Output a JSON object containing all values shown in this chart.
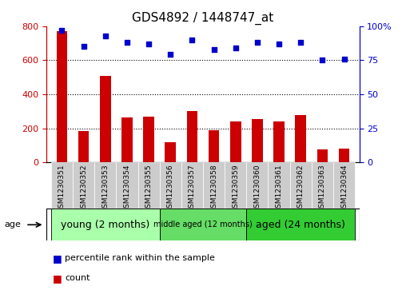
{
  "title": "GDS4892 / 1448747_at",
  "samples": [
    "GSM1230351",
    "GSM1230352",
    "GSM1230353",
    "GSM1230354",
    "GSM1230355",
    "GSM1230356",
    "GSM1230357",
    "GSM1230358",
    "GSM1230359",
    "GSM1230360",
    "GSM1230361",
    "GSM1230362",
    "GSM1230363",
    "GSM1230364"
  ],
  "counts": [
    770,
    185,
    510,
    265,
    268,
    120,
    300,
    190,
    240,
    255,
    240,
    278,
    75,
    80
  ],
  "percentiles": [
    97,
    85,
    93,
    88,
    87,
    79,
    90,
    83,
    84,
    88,
    87,
    88,
    75,
    76
  ],
  "ylim_left": [
    0,
    800
  ],
  "ylim_right": [
    0,
    100
  ],
  "yticks_left": [
    0,
    200,
    400,
    600,
    800
  ],
  "yticks_right": [
    0,
    25,
    50,
    75,
    100
  ],
  "bar_color": "#cc0000",
  "dot_color": "#0000cc",
  "groups": [
    {
      "label": "young (2 months)",
      "start": 0,
      "end": 5,
      "color": "#aaffaa",
      "fontsize": 9
    },
    {
      "label": "middle aged (12 months)",
      "start": 5,
      "end": 9,
      "color": "#66dd66",
      "fontsize": 7
    },
    {
      "label": "aged (24 months)",
      "start": 9,
      "end": 14,
      "color": "#33cc33",
      "fontsize": 9
    }
  ],
  "age_label": "age",
  "legend_count_label": "count",
  "legend_percentile_label": "percentile rank within the sample",
  "background_color": "#ffffff",
  "tick_bg_color": "#cccccc",
  "grid_lines_at": [
    200,
    400,
    600
  ]
}
